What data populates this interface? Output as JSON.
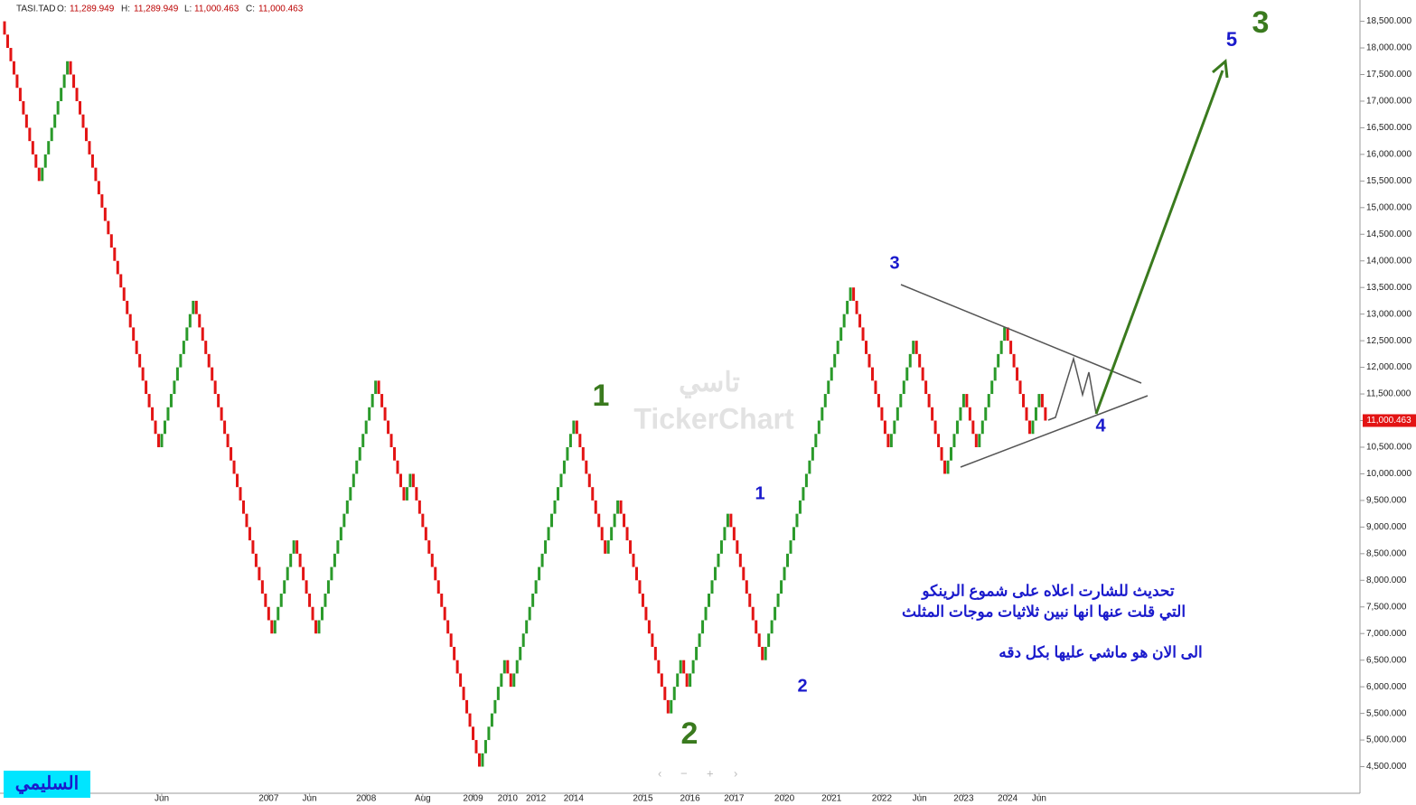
{
  "header": {
    "symbol": "TASI.TAD",
    "o_label": "O:",
    "open": "11,289.949",
    "h_label": "H:",
    "high": "11,289.949",
    "l_label": "L:",
    "low": "11,000.463",
    "c_label": "C:",
    "close": "11,000.463"
  },
  "watermark": {
    "arabic": "تاسي",
    "brand": "TickerChart"
  },
  "signature": "السليمي",
  "chart_data": {
    "type": "renko",
    "start": 18500,
    "brick_size": 250,
    "pivots": [
      15500,
      17750,
      10500,
      13250,
      7000,
      8750,
      7000,
      11750,
      9500,
      10000,
      4500,
      6500,
      6000,
      11000,
      8500,
      9500,
      5500,
      6500,
      6000,
      9250,
      6500,
      13500,
      10500,
      12500,
      10000,
      11500,
      10500,
      12750,
      10750,
      11500,
      11000
    ],
    "up_color": "#2a9a2a",
    "down_color": "#e31414",
    "ylim": [
      4000,
      18900
    ],
    "yticks": [
      {
        "value": 4500,
        "label": "4,500.000"
      },
      {
        "value": 5000,
        "label": "5,000.000"
      },
      {
        "value": 5500,
        "label": "5,500.000"
      },
      {
        "value": 6000,
        "label": "6,000.000"
      },
      {
        "value": 6500,
        "label": "6,500.000"
      },
      {
        "value": 7000,
        "label": "7,000.000"
      },
      {
        "value": 7500,
        "label": "7,500.000"
      },
      {
        "value": 8000,
        "label": "8,000.000"
      },
      {
        "value": 8500,
        "label": "8,500.000"
      },
      {
        "value": 9000,
        "label": "9,000.000"
      },
      {
        "value": 9500,
        "label": "9,500.000"
      },
      {
        "value": 10000,
        "label": "10,000.000"
      },
      {
        "value": 10500,
        "label": "10,500.000"
      },
      {
        "value": 11000,
        "label": "11,000.000"
      },
      {
        "value": 11500,
        "label": "11,500.000"
      },
      {
        "value": 12000,
        "label": "12,000.000"
      },
      {
        "value": 12500,
        "label": "12,500.000"
      },
      {
        "value": 13000,
        "label": "13,000.000"
      },
      {
        "value": 13500,
        "label": "13,500.000"
      },
      {
        "value": 14000,
        "label": "14,000.000"
      },
      {
        "value": 14500,
        "label": "14,500.000"
      },
      {
        "value": 15000,
        "label": "15,000.000"
      },
      {
        "value": 15500,
        "label": "15,500.000"
      },
      {
        "value": 16000,
        "label": "16,000.000"
      },
      {
        "value": 16500,
        "label": "16,500.000"
      },
      {
        "value": 17000,
        "label": "17,000.000"
      },
      {
        "value": 17500,
        "label": "17,500.000"
      },
      {
        "value": 18000,
        "label": "18,000.000"
      },
      {
        "value": 18500,
        "label": "18,500.000"
      }
    ],
    "xticks": [
      {
        "value": 50,
        "label": "Jun"
      },
      {
        "value": 84,
        "label": "2007"
      },
      {
        "value": 97,
        "label": "Jun"
      },
      {
        "value": 115,
        "label": "2008"
      },
      {
        "value": 133,
        "label": "Aug"
      },
      {
        "value": 149,
        "label": "2009"
      },
      {
        "value": 160,
        "label": "2010"
      },
      {
        "value": 169,
        "label": "2012"
      },
      {
        "value": 181,
        "label": "2014"
      },
      {
        "value": 203,
        "label": "2015"
      },
      {
        "value": 218,
        "label": "2016"
      },
      {
        "value": 232,
        "label": "2017"
      },
      {
        "value": 248,
        "label": "2020"
      },
      {
        "value": 263,
        "label": "2021"
      },
      {
        "value": 279,
        "label": "2022"
      },
      {
        "value": 291,
        "label": "Jun"
      },
      {
        "value": 305,
        "label": "2023"
      },
      {
        "value": 319,
        "label": "2024"
      },
      {
        "value": 329,
        "label": "Jun"
      }
    ],
    "last": {
      "value": 11000.463,
      "label": "11,000.463"
    },
    "annotations": [
      {
        "text": "3",
        "color": "#3a7a1e"
      },
      {
        "text": "5",
        "color": "#1a1acc"
      },
      {
        "text": "1",
        "color": "#3a7a1e"
      },
      {
        "text": "2",
        "color": "#3a7a1e"
      },
      {
        "text": "1",
        "color": "#1a1acc"
      },
      {
        "text": "2",
        "color": "#1a1acc"
      },
      {
        "text": "3",
        "color": "#1a1acc"
      },
      {
        "text": "4",
        "color": "#1a1acc"
      }
    ],
    "notes": [
      "تحديث للشارت اعلاه على شموع الرينكو",
      "التي قلت عنها انها نبين ثلاثيات موجات المثلث",
      "الى الان هو ماشي عليها بكل دقه"
    ]
  }
}
